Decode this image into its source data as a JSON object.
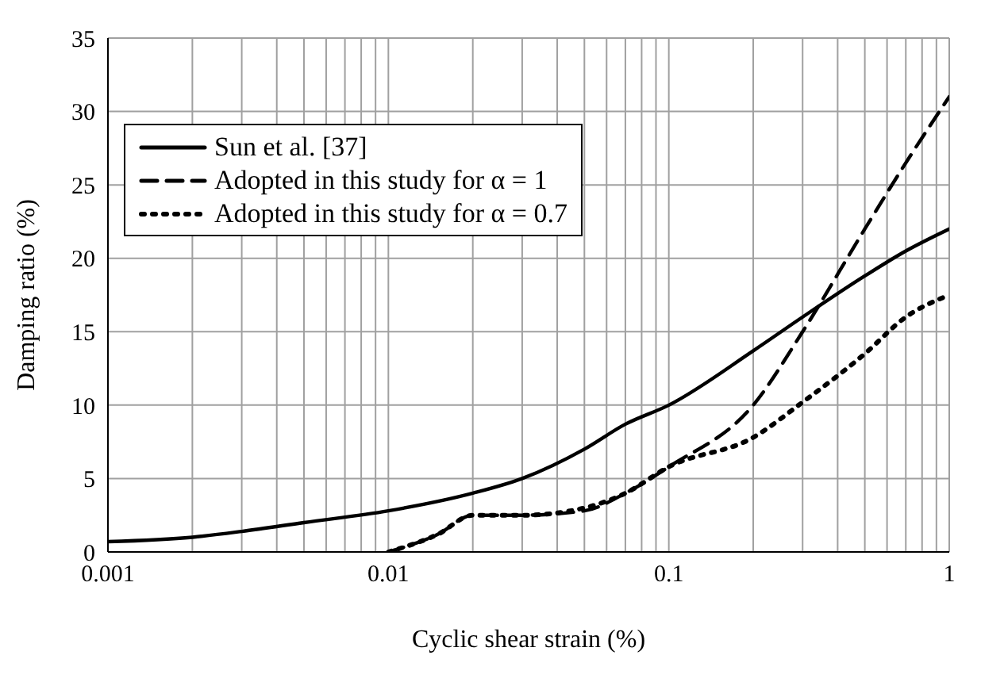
{
  "chart_data": {
    "type": "line",
    "xlabel": "Cyclic shear strain (%)",
    "ylabel": "Damping ratio (%)",
    "log": "x",
    "xlim": [
      0.001,
      1
    ],
    "xticks": [
      0.001,
      {
        "value": 0.002,
        "label": null
      },
      {
        "value": 0.003,
        "label": null
      },
      {
        "value": 0.004,
        "label": null
      },
      {
        "value": 0.005,
        "label": null
      },
      {
        "value": 0.006,
        "label": null
      },
      {
        "value": 0.007,
        "label": null
      },
      {
        "value": 0.008,
        "label": null
      },
      {
        "value": 0.009,
        "label": null
      },
      0.01,
      {
        "value": 0.02,
        "label": null
      },
      {
        "value": 0.03,
        "label": null
      },
      {
        "value": 0.04,
        "label": null
      },
      {
        "value": 0.05,
        "label": null
      },
      {
        "value": 0.06,
        "label": null
      },
      {
        "value": 0.07,
        "label": null
      },
      {
        "value": 0.08,
        "label": null
      },
      {
        "value": 0.09,
        "label": null
      },
      0.1,
      {
        "value": 0.2,
        "label": null
      },
      {
        "value": 0.3,
        "label": null
      },
      {
        "value": 0.4,
        "label": null
      },
      {
        "value": 0.5,
        "label": null
      },
      {
        "value": 0.6,
        "label": null
      },
      {
        "value": 0.7,
        "label": null
      },
      {
        "value": 0.8,
        "label": null
      },
      {
        "value": 0.9,
        "label": null
      },
      1
    ],
    "ylim": [
      0,
      35
    ],
    "yticks": [
      0,
      5,
      10,
      15,
      20,
      25,
      30,
      35
    ],
    "grid": true,
    "legend": "top left",
    "marker": "none",
    "series": [
      {
        "name": "Sun et al. [37]",
        "color": "#000000",
        "line_style": "solid",
        "x": [
          0.001,
          0.002,
          0.003,
          0.005,
          0.01,
          0.02,
          0.03,
          0.05,
          0.07,
          0.1,
          0.2,
          0.3,
          0.5,
          0.7,
          1
        ],
        "values": [
          0.7,
          1.0,
          1.4,
          2.0,
          2.8,
          4.0,
          5.0,
          7.0,
          8.7,
          10,
          13.7,
          16,
          18.8,
          20.5,
          22
        ]
      },
      {
        "name": "Adopted in this study for α = 1",
        "color": "#000000",
        "line_style": "dashed",
        "x": [
          0.01,
          0.015,
          0.02,
          0.03,
          0.05,
          0.07,
          0.1,
          0.2,
          0.3,
          0.5,
          0.7,
          1
        ],
        "values": [
          0,
          1.2,
          2.5,
          2.5,
          2.8,
          4,
          5.8,
          10,
          15,
          22,
          26.5,
          31
        ]
      },
      {
        "name": "Adopted in this study for α = 0.7",
        "color": "#000000",
        "line_style": "dotted",
        "x": [
          0.01,
          0.015,
          0.02,
          0.03,
          0.05,
          0.07,
          0.1,
          0.2,
          0.3,
          0.5,
          0.7,
          1
        ],
        "values": [
          0,
          1.2,
          2.5,
          2.5,
          3,
          4,
          5.8,
          7.8,
          10.2,
          13.5,
          16,
          17.5
        ]
      }
    ]
  }
}
